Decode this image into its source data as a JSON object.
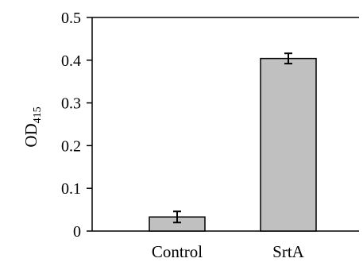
{
  "chart_data": {
    "type": "bar",
    "categories": [
      "Control",
      "SrtA"
    ],
    "values": [
      0.033,
      0.404
    ],
    "errors": [
      0.013,
      0.012
    ],
    "ylabel": {
      "main": "OD",
      "subscript": "415"
    },
    "xlabel": "",
    "ylim": [
      0,
      0.5
    ],
    "yticks": [
      "0",
      "0.1",
      "0.2",
      "0.3",
      "0.4",
      "0.5"
    ],
    "ytick_values": [
      0,
      0.1,
      0.2,
      0.3,
      0.4,
      0.5
    ],
    "grid": false,
    "bar_color": "#c0c0c0",
    "edge_color": "#000000"
  }
}
